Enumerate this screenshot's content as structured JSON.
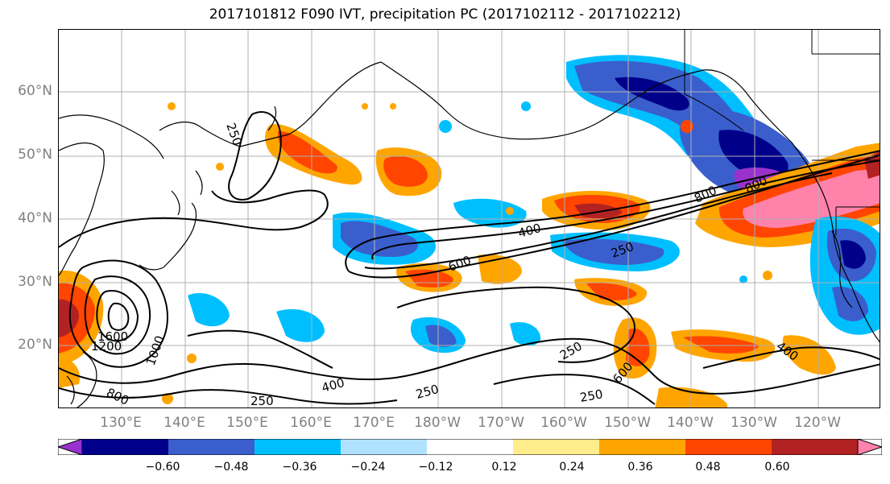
{
  "title": "2017101812 F090 IVT, precipitation PC (2017102112 - 2017102212)",
  "lat_labels": [
    "60°N",
    "50°N",
    "40°N",
    "30°N",
    "20°N"
  ],
  "lon_labels": [
    "130°E",
    "140°E",
    "150°E",
    "160°E",
    "170°E",
    "180°W",
    "170°W",
    "160°W",
    "150°W",
    "140°W",
    "130°W",
    "120°W"
  ],
  "colorbar": {
    "colors": [
      "#9932CC",
      "#00008B",
      "#3A5FCD",
      "#00BFFF",
      "#B0E2FF",
      "#FFFFFF",
      "#FFEC8B",
      "#FFA500",
      "#FF4500",
      "#B22222",
      "#FF82AB"
    ],
    "tick_labels": [
      "−0.60",
      "−0.48",
      "−0.36",
      "−0.24",
      "−0.12",
      "0.12",
      "0.24",
      "0.36",
      "0.48",
      "0.60"
    ]
  },
  "contour_labels": [
    "250",
    "250",
    "250",
    "250",
    "250",
    "250",
    "400",
    "400",
    "400",
    "600",
    "600",
    "800",
    "800",
    "1000",
    "1200",
    "1600"
  ]
}
